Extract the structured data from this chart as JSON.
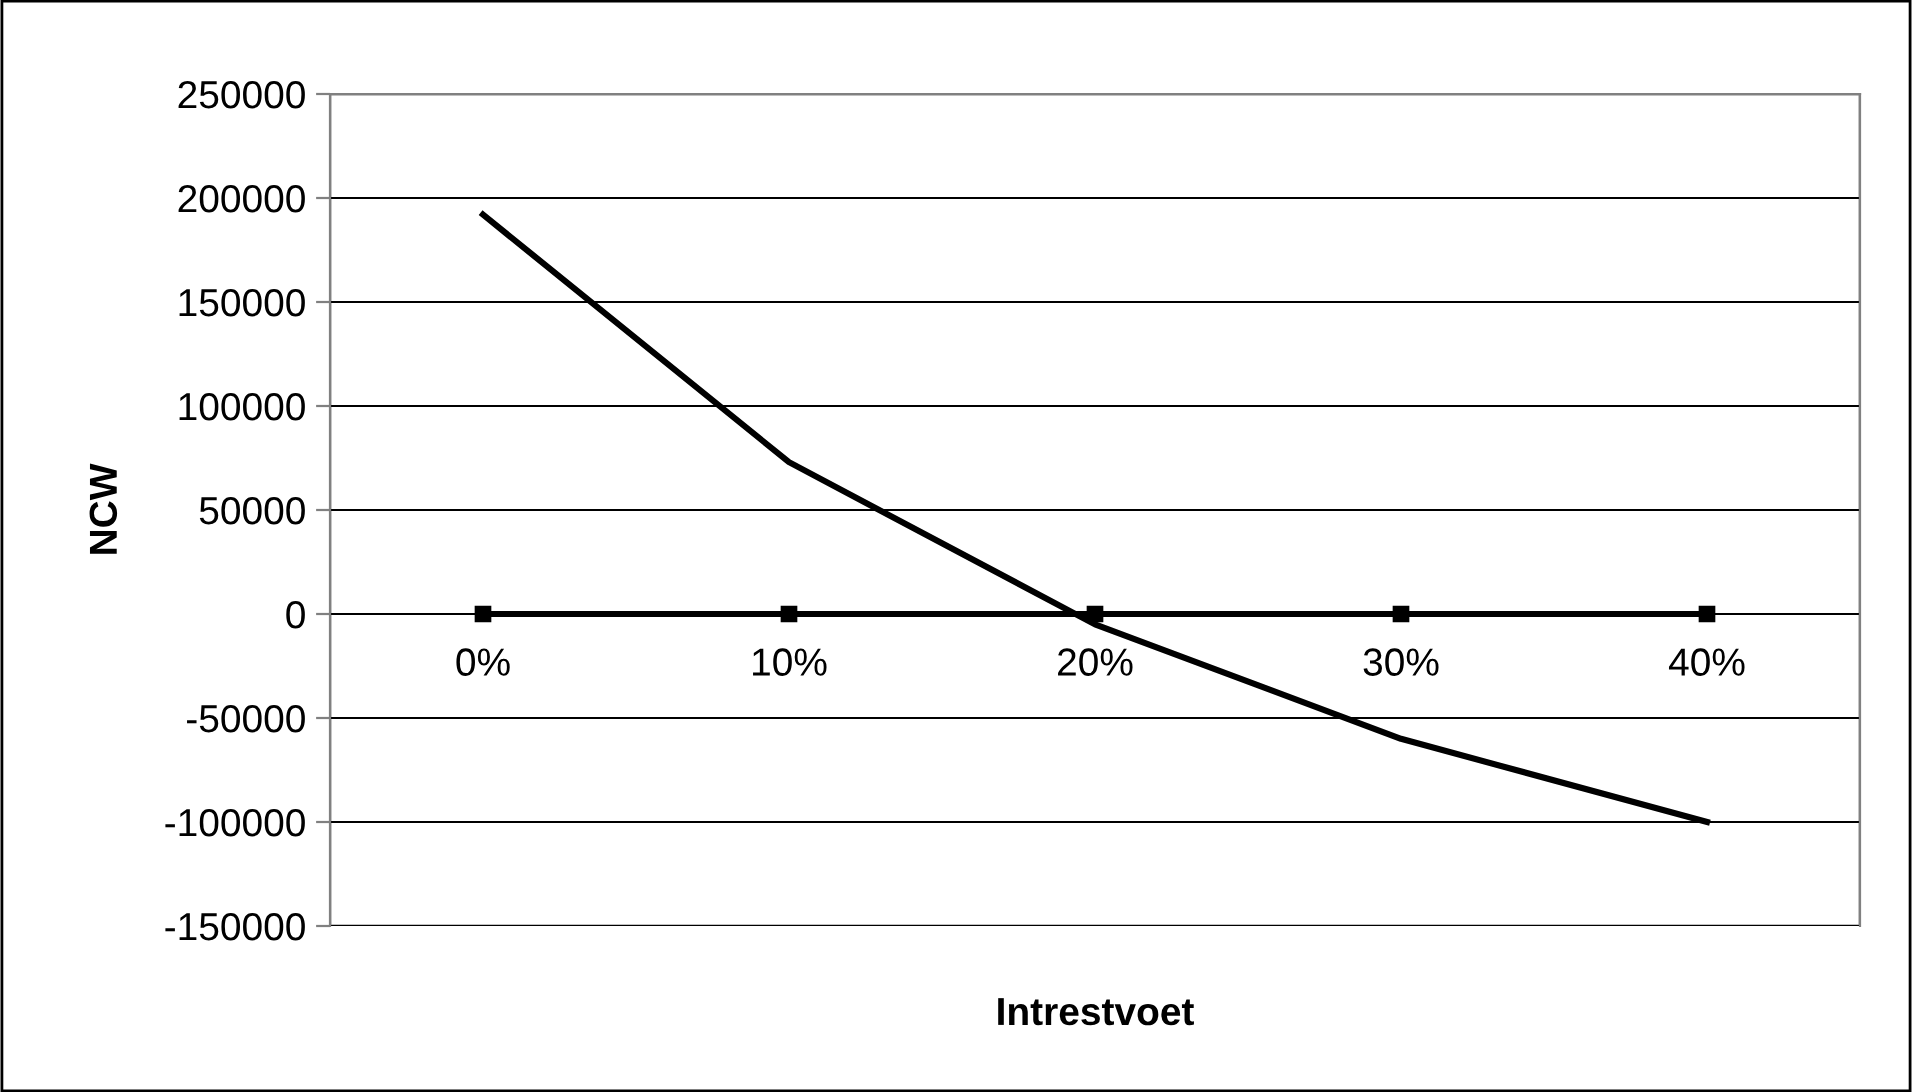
{
  "chart_data": {
    "type": "line",
    "xlabel": "Intrestvoet",
    "ylabel": "NCW",
    "categories": [
      "0%",
      "10%",
      "20%",
      "30%",
      "40%"
    ],
    "series": [
      {
        "color": "#000000",
        "values": [
          192000,
          73000,
          -5000,
          -60000,
          -100000
        ],
        "marker": "none"
      },
      {
        "color": "#000000",
        "values": [
          0,
          0,
          0,
          0,
          0
        ],
        "marker": "square"
      }
    ],
    "ylim": [
      -150000,
      250000
    ],
    "yticks": [
      -150000,
      -100000,
      -50000,
      0,
      50000,
      100000,
      150000,
      200000,
      250000
    ],
    "grid": "y",
    "legend": false,
    "line_style": "solid"
  }
}
